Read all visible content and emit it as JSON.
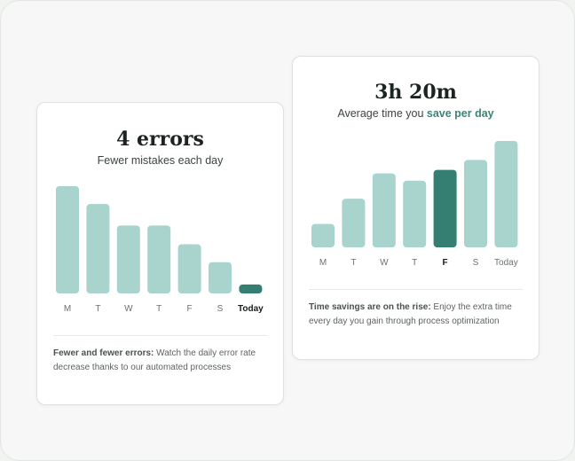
{
  "colors": {
    "bar": "#a9d3cd",
    "highlight": "#357f72",
    "label": "#6b716e",
    "label_highlight": "#161c1a"
  },
  "errors_card": {
    "title": "4 errors",
    "subtitle": "Fewer mistakes each day",
    "desc_bold": "Fewer and fewer errors:",
    "desc_text": " Watch the daily error rate decrease thanks to our automated processes"
  },
  "time_card": {
    "title": "3h 20m",
    "subtitle_prefix": "Average time you ",
    "subtitle_accent": "save per day",
    "desc_bold": "Time savings are on the rise:",
    "desc_text": " Enjoy the extra time every day you gain through process optimization"
  },
  "chart_data": [
    {
      "type": "bar",
      "categories": [
        "M",
        "T",
        "W",
        "T",
        "F",
        "S",
        "Today"
      ],
      "values": [
        12,
        10,
        7.6,
        7.6,
        5.5,
        3.5,
        1
      ],
      "highlight_index": 6,
      "ylim": [
        0,
        12
      ],
      "grid": false
    },
    {
      "type": "bar",
      "categories": [
        "M",
        "T",
        "W",
        "T",
        "F",
        "S",
        "Today"
      ],
      "values": [
        2.6,
        5.4,
        8.2,
        7.4,
        8.6,
        9.7,
        11.8
      ],
      "highlight_index": 4,
      "ylim": [
        0,
        12
      ],
      "grid": false
    }
  ]
}
